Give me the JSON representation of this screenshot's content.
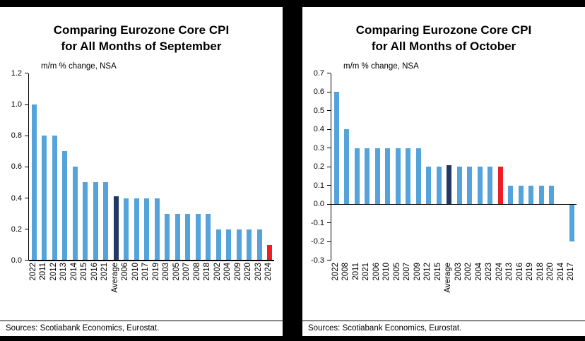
{
  "background_color": "#000000",
  "panel_color": "#FFFFFF",
  "text_color": "#000000",
  "chart_data": [
    {
      "type": "bar",
      "title": "Comparing Eurozone Core CPI for All Months of September",
      "title_line1": "Comparing Eurozone Core CPI",
      "title_line2": "for All Months of September",
      "subtitle": "m/m % change, NSA",
      "sources": "Sources: Scotiabank Economics, Eurostat.",
      "xlabel": "",
      "ylabel": "m/m % change, NSA",
      "categories": [
        "2022",
        "2011",
        "2012",
        "2013",
        "2014",
        "2015",
        "2016",
        "2021",
        "Average",
        "2006",
        "2010",
        "2017",
        "2019",
        "2003",
        "2005",
        "2007",
        "2008",
        "2018",
        "2002",
        "2004",
        "2009",
        "2020",
        "2023",
        "2024"
      ],
      "values": [
        1.0,
        0.8,
        0.8,
        0.7,
        0.6,
        0.5,
        0.5,
        0.5,
        0.41,
        0.4,
        0.4,
        0.4,
        0.4,
        0.3,
        0.3,
        0.3,
        0.3,
        0.3,
        0.2,
        0.2,
        0.2,
        0.2,
        0.2,
        0.1
      ],
      "ylim": [
        0,
        1.2
      ],
      "yticks": [
        1.2,
        1.0,
        0.8,
        0.6,
        0.4,
        0.2,
        0.0
      ],
      "ytick_labels": [
        "1.2",
        "1.0",
        "0.8",
        "0.6",
        "0.4",
        "0.2",
        "0.0"
      ],
      "grid": false,
      "legend": "none",
      "bar_color": "#54A4DB",
      "average_category": "Average",
      "average_color": "#1F3864",
      "highlight_category": "2024",
      "highlight_color": "#EE1C25"
    },
    {
      "type": "bar",
      "title": "Comparing Eurozone Core CPI for All Months of October",
      "title_line1": "Comparing Eurozone Core CPI",
      "title_line2": "for All Months of October",
      "subtitle": "m/m % change, NSA",
      "sources": "Sources: Scotiabank Economics, Eurostat.",
      "xlabel": "",
      "ylabel": "m/m % change, NSA",
      "categories": [
        "2022",
        "2008",
        "2011",
        "2021",
        "2006",
        "2010",
        "2005",
        "2007",
        "2009",
        "2012",
        "2015",
        "Average",
        "2003",
        "2002",
        "2004",
        "2023",
        "2024",
        "2013",
        "2016",
        "2019",
        "2018",
        "2020",
        "2014",
        "2017"
      ],
      "values": [
        0.6,
        0.4,
        0.3,
        0.3,
        0.3,
        0.3,
        0.3,
        0.3,
        0.3,
        0.2,
        0.2,
        0.21,
        0.2,
        0.2,
        0.2,
        0.2,
        0.2,
        0.1,
        0.1,
        0.1,
        0.1,
        0.1,
        0.0,
        -0.2
      ],
      "ylim": [
        -0.3,
        0.7
      ],
      "yticks": [
        0.7,
        0.6,
        0.5,
        0.4,
        0.3,
        0.2,
        0.1,
        0.0,
        -0.1,
        -0.2,
        -0.3
      ],
      "ytick_labels": [
        "0.7",
        "0.6",
        "0.5",
        "0.4",
        "0.3",
        "0.2",
        "0.1",
        "0.0",
        "-0.1",
        "-0.2",
        "-0.3"
      ],
      "grid": false,
      "legend": "none",
      "bar_color": "#54A4DB",
      "average_category": "Average",
      "average_color": "#1F3864",
      "highlight_category": "2024",
      "highlight_color": "#EE1C25"
    }
  ]
}
